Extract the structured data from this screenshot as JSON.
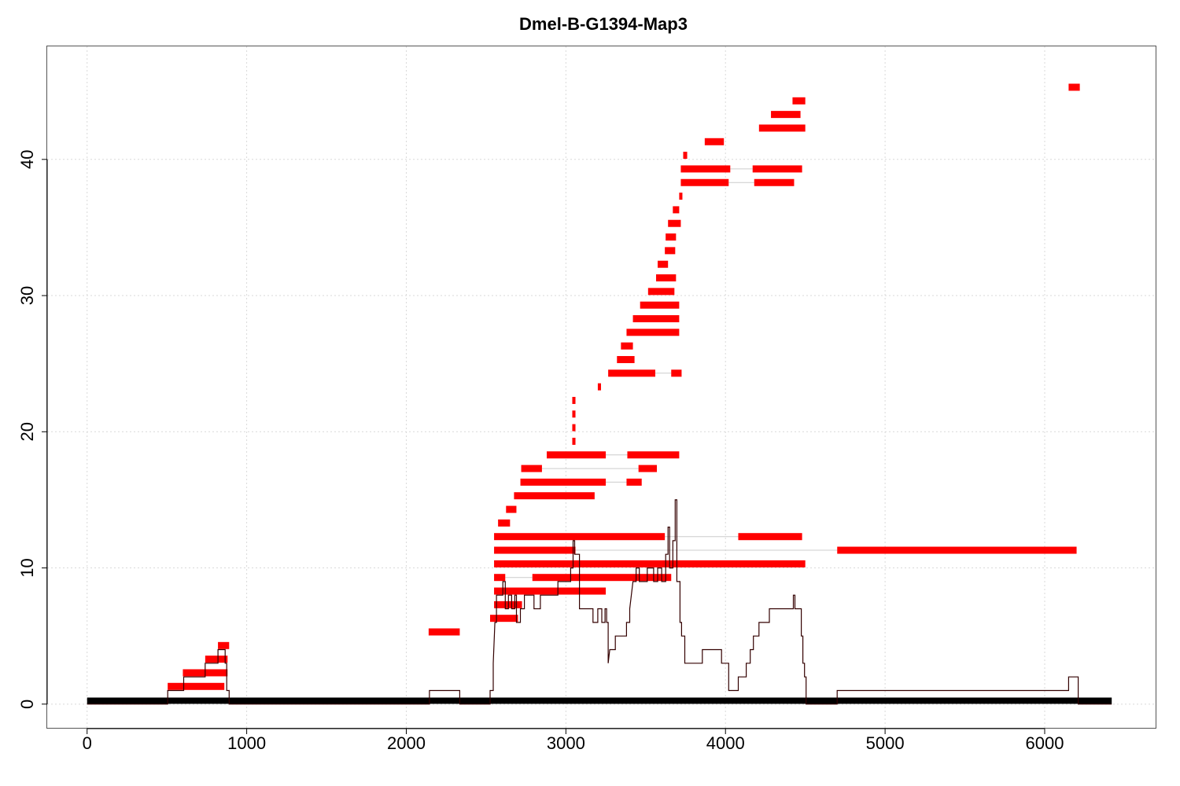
{
  "chart_data": {
    "type": "bar",
    "title": "Dmel-B-G1394-Map3",
    "xlabel": "",
    "ylabel": "",
    "xlim": [
      -250,
      6700
    ],
    "ylim": [
      -1.8,
      48.3
    ],
    "x_ticks": [
      0,
      1000,
      2000,
      3000,
      4000,
      5000,
      6000
    ],
    "y_ticks": [
      0,
      10,
      20,
      30,
      40
    ],
    "grid": true,
    "colors": {
      "reads": "#ff0000",
      "coverage": "#330000",
      "connector": "#cccccc",
      "baseline": "#000000"
    },
    "baseline": {
      "x": [
        0,
        6420
      ],
      "y": 0.25
    },
    "coverage": [
      [
        0,
        0
      ],
      [
        505,
        0
      ],
      [
        505,
        1
      ],
      [
        605,
        1
      ],
      [
        605,
        2
      ],
      [
        740,
        2
      ],
      [
        740,
        3
      ],
      [
        820,
        3
      ],
      [
        820,
        4
      ],
      [
        865,
        4
      ],
      [
        865,
        3
      ],
      [
        875,
        3
      ],
      [
        875,
        1
      ],
      [
        890,
        1
      ],
      [
        890,
        0
      ],
      [
        2145,
        0
      ],
      [
        2145,
        1
      ],
      [
        2335,
        1
      ],
      [
        2335,
        0
      ],
      [
        2525,
        0
      ],
      [
        2525,
        1
      ],
      [
        2545,
        1
      ],
      [
        2545,
        3
      ],
      [
        2555,
        6
      ],
      [
        2565,
        6
      ],
      [
        2565,
        8
      ],
      [
        2605,
        8
      ],
      [
        2605,
        9
      ],
      [
        2620,
        9
      ],
      [
        2620,
        7
      ],
      [
        2640,
        7
      ],
      [
        2640,
        8
      ],
      [
        2660,
        8
      ],
      [
        2660,
        7
      ],
      [
        2680,
        7
      ],
      [
        2680,
        8
      ],
      [
        2690,
        8
      ],
      [
        2690,
        6
      ],
      [
        2715,
        6
      ],
      [
        2715,
        7
      ],
      [
        2740,
        7
      ],
      [
        2740,
        8
      ],
      [
        2800,
        8
      ],
      [
        2800,
        7
      ],
      [
        2840,
        7
      ],
      [
        2840,
        8
      ],
      [
        2950,
        8
      ],
      [
        2950,
        9
      ],
      [
        3030,
        9
      ],
      [
        3030,
        10
      ],
      [
        3045,
        10
      ],
      [
        3045,
        12
      ],
      [
        3055,
        12
      ],
      [
        3055,
        11
      ],
      [
        3085,
        11
      ],
      [
        3085,
        7
      ],
      [
        3170,
        7
      ],
      [
        3170,
        6
      ],
      [
        3200,
        6
      ],
      [
        3200,
        7
      ],
      [
        3225,
        7
      ],
      [
        3225,
        6
      ],
      [
        3245,
        6
      ],
      [
        3245,
        7
      ],
      [
        3255,
        7
      ],
      [
        3255,
        6
      ],
      [
        3265,
        6
      ],
      [
        3265,
        3
      ],
      [
        3275,
        4
      ],
      [
        3310,
        4
      ],
      [
        3310,
        5
      ],
      [
        3380,
        5
      ],
      [
        3380,
        6
      ],
      [
        3400,
        6
      ],
      [
        3400,
        7
      ],
      [
        3420,
        9
      ],
      [
        3440,
        9
      ],
      [
        3440,
        10
      ],
      [
        3460,
        10
      ],
      [
        3460,
        9
      ],
      [
        3510,
        9
      ],
      [
        3510,
        10
      ],
      [
        3550,
        10
      ],
      [
        3550,
        9
      ],
      [
        3575,
        9
      ],
      [
        3575,
        10
      ],
      [
        3600,
        10
      ],
      [
        3600,
        9
      ],
      [
        3625,
        9
      ],
      [
        3625,
        11
      ],
      [
        3640,
        11
      ],
      [
        3640,
        13
      ],
      [
        3650,
        13
      ],
      [
        3650,
        10
      ],
      [
        3670,
        10
      ],
      [
        3670,
        12
      ],
      [
        3685,
        12
      ],
      [
        3685,
        15
      ],
      [
        3695,
        15
      ],
      [
        3695,
        9
      ],
      [
        3715,
        9
      ],
      [
        3715,
        6
      ],
      [
        3725,
        6
      ],
      [
        3725,
        5
      ],
      [
        3745,
        5
      ],
      [
        3745,
        3
      ],
      [
        3855,
        3
      ],
      [
        3855,
        4
      ],
      [
        3975,
        4
      ],
      [
        3975,
        3
      ],
      [
        4020,
        3
      ],
      [
        4020,
        1
      ],
      [
        4080,
        1
      ],
      [
        4080,
        2
      ],
      [
        4130,
        2
      ],
      [
        4130,
        3
      ],
      [
        4155,
        3
      ],
      [
        4155,
        4
      ],
      [
        4175,
        4
      ],
      [
        4175,
        5
      ],
      [
        4210,
        5
      ],
      [
        4210,
        6
      ],
      [
        4275,
        6
      ],
      [
        4275,
        7
      ],
      [
        4425,
        7
      ],
      [
        4425,
        8
      ],
      [
        4435,
        8
      ],
      [
        4435,
        7
      ],
      [
        4475,
        7
      ],
      [
        4475,
        5
      ],
      [
        4485,
        5
      ],
      [
        4485,
        3
      ],
      [
        4495,
        3
      ],
      [
        4495,
        2
      ],
      [
        4505,
        2
      ],
      [
        4505,
        0
      ],
      [
        4700,
        0
      ],
      [
        4700,
        1
      ],
      [
        6150,
        1
      ],
      [
        6150,
        2
      ],
      [
        6210,
        2
      ],
      [
        6210,
        0
      ],
      [
        6420,
        0
      ]
    ],
    "reads": [
      [
        [
          505,
          860
        ]
      ],
      [
        [
          600,
          880
        ]
      ],
      [
        [
          740,
          880
        ]
      ],
      [
        [
          820,
          890
        ]
      ],
      [
        [
          2140,
          2335
        ]
      ],
      [
        [
          2525,
          2700
        ]
      ],
      [
        [
          2550,
          2725
        ]
      ],
      [
        [
          2550,
          3250
        ]
      ],
      [
        [
          2550,
          2620
        ],
        [
          2790,
          3660
        ]
      ],
      [
        [
          2550,
          4500
        ]
      ],
      [
        [
          2550,
          3060
        ],
        [
          4700,
          6200
        ]
      ],
      [
        [
          2550,
          3620
        ],
        [
          4080,
          4480
        ]
      ],
      [
        [
          2575,
          2650
        ]
      ],
      [
        [
          2625,
          2690
        ]
      ],
      [
        [
          2675,
          3180
        ]
      ],
      [
        [
          2715,
          3250
        ],
        [
          3380,
          3475
        ]
      ],
      [
        [
          2720,
          2850
        ],
        [
          3455,
          3570
        ]
      ],
      [
        [
          2880,
          3250
        ],
        [
          3385,
          3710
        ]
      ],
      [
        [
          3040,
          3060
        ]
      ],
      [
        [
          3040,
          3060
        ]
      ],
      [
        [
          3040,
          3060
        ]
      ],
      [
        [
          3040,
          3060
        ]
      ],
      [
        [
          3200,
          3220
        ]
      ],
      [
        [
          3265,
          3560
        ],
        [
          3660,
          3725
        ]
      ],
      [
        [
          3320,
          3430
        ]
      ],
      [
        [
          3345,
          3420
        ]
      ],
      [
        [
          3380,
          3710
        ]
      ],
      [
        [
          3420,
          3710
        ]
      ],
      [
        [
          3465,
          3710
        ]
      ],
      [
        [
          3515,
          3680
        ]
      ],
      [
        [
          3565,
          3690
        ]
      ],
      [
        [
          3575,
          3640
        ]
      ],
      [
        [
          3620,
          3685
        ]
      ],
      [
        [
          3625,
          3690
        ]
      ],
      [
        [
          3640,
          3720
        ]
      ],
      [
        [
          3670,
          3710
        ]
      ],
      [
        [
          3710,
          3730
        ]
      ],
      [
        [
          3720,
          4020
        ],
        [
          4180,
          4430
        ]
      ],
      [
        [
          3720,
          4030
        ],
        [
          4170,
          4480
        ]
      ],
      [
        [
          3735,
          3760
        ]
      ],
      [
        [
          3870,
          3990
        ]
      ],
      [
        [
          4210,
          4500
        ]
      ],
      [
        [
          4285,
          4470
        ]
      ],
      [
        [
          4420,
          4500
        ]
      ],
      [
        [
          6150,
          6220
        ]
      ]
    ],
    "read_levels": [
      1.3,
      2.3,
      3.3,
      4.3,
      5.3,
      6.3,
      7.3,
      8.3,
      9.3,
      10.3,
      11.3,
      12.3,
      13.3,
      14.3,
      15.3,
      16.3,
      17.3,
      18.3,
      19.3,
      20.3,
      21.3,
      22.3,
      23.3,
      24.3,
      25.3,
      26.3,
      27.3,
      28.3,
      29.3,
      30.3,
      31.3,
      32.3,
      33.3,
      34.3,
      35.3,
      36.3,
      37.3,
      38.3,
      39.3,
      40.3,
      41.3,
      42.3,
      43.3,
      44.3,
      45.3
    ]
  }
}
